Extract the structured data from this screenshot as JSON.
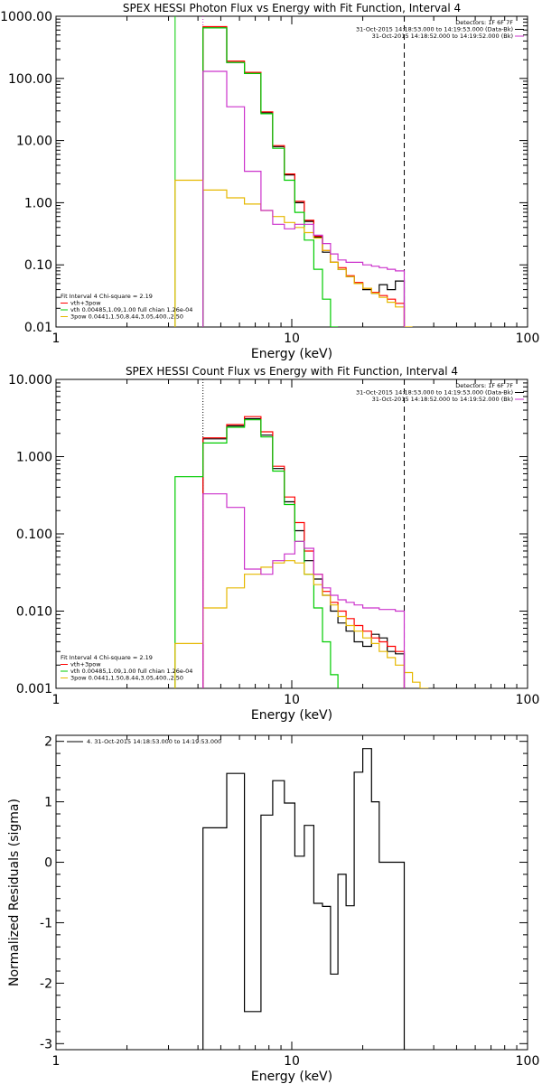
{
  "chart_data": [
    {
      "type": "line",
      "title": "SPEX HESSI Photon Flux vs Energy with Fit Function, Interval 4",
      "xlabel": "Energy (keV)",
      "ylabel": "",
      "xscale": "log",
      "yscale": "log",
      "xlim": [
        1,
        100
      ],
      "ylim": [
        0.01,
        1000
      ],
      "grid": false,
      "xticks": [
        "1",
        "10",
        "100"
      ],
      "yticks": [
        "0.01",
        "0.10",
        "1.00",
        "10.00",
        "100.00",
        "1000.00"
      ],
      "ytick_values": [
        0.01,
        0.1,
        1,
        10,
        100,
        1000
      ],
      "legend_top": [
        "Detectors: 1F 6F 7F",
        "31-Oct-2015 14:18:53.000 to 14:19:53.000 (Data-Bk)",
        "31-Oct-2015 14:18:52.000 to 14:19:52.000 (Bk)"
      ],
      "legend_top_colors": [
        "#000000",
        "#000000",
        "#cc33cc"
      ],
      "legend_bottom": [
        "Fit Interval 4   Chi-square = 2.19",
        "vth+3pow",
        "vth 0.00485,1.09,1.00  full chian 1.26e-04",
        "3pow 0.0441,1.50,8.44,3.05,400.,2.50"
      ],
      "legend_bottom_colors": [
        "",
        "#ff0000",
        "#00cc00",
        "#e6b800"
      ],
      "vlines": [
        {
          "x": 3.2,
          "color": "#00cc00",
          "style": "solid"
        },
        {
          "x": 4.2,
          "color": "#cc33cc",
          "style": "dotted"
        },
        {
          "x": 30,
          "color": "#000000",
          "style": "dashed"
        }
      ],
      "bin_edges": [
        3.2,
        4.2,
        5.3,
        6.3,
        7.4,
        8.3,
        9.3,
        10.3,
        11.3,
        12.4,
        13.5,
        14.6,
        15.7,
        17,
        18.4,
        20,
        21.8,
        23.5,
        25.4,
        27.5,
        30,
        32.5
      ],
      "series": [
        {
          "name": "",
          "color": "#000000",
          "values": [
            null,
            650,
            180,
            120,
            28,
            8,
            2.8,
            1.0,
            0.5,
            0.28,
            0.16,
            0.11,
            0.085,
            0.065,
            0.05,
            0.04,
            0.035,
            0.048,
            0.04,
            0.055,
            null
          ]
        },
        {
          "name": "vth+3pow",
          "color": "#ff0000",
          "values": [
            null,
            680,
            190,
            125,
            29,
            8.3,
            2.9,
            1.05,
            0.52,
            0.29,
            0.17,
            0.11,
            0.09,
            0.067,
            0.052,
            0.042,
            0.036,
            0.032,
            0.028,
            0.024,
            null
          ]
        },
        {
          "name": "vth",
          "color": "#00cc00",
          "values": [
            null,
            650,
            180,
            120,
            27,
            7.5,
            2.3,
            0.7,
            0.25,
            0.085,
            0.028,
            0.01,
            null,
            null,
            null,
            null,
            null,
            null,
            null,
            null,
            null
          ]
        },
        {
          "name": "3pow",
          "color": "#e6b800",
          "values": [
            2.3,
            1.6,
            1.2,
            0.95,
            0.75,
            0.6,
            0.48,
            0.4,
            0.33,
            0.27,
            0.17,
            0.11,
            0.085,
            0.065,
            0.05,
            0.042,
            0.035,
            0.03,
            0.025,
            0.021,
            0.01
          ]
        },
        {
          "name": "Bk",
          "color": "#cc33cc",
          "values": [
            null,
            130,
            35,
            3.2,
            0.75,
            0.45,
            0.38,
            0.45,
            0.45,
            0.3,
            0.22,
            0.15,
            0.12,
            0.11,
            0.11,
            0.1,
            0.095,
            0.09,
            0.085,
            0.08,
            null
          ]
        }
      ]
    },
    {
      "type": "line",
      "title": "SPEX HESSI Count Flux vs Energy with Fit Function, Interval 4",
      "xlabel": "Energy (keV)",
      "ylabel": "",
      "xscale": "log",
      "yscale": "log",
      "xlim": [
        1,
        100
      ],
      "ylim": [
        0.001,
        10
      ],
      "grid": false,
      "xticks": [
        "1",
        "10",
        "100"
      ],
      "yticks": [
        "0.001",
        "0.010",
        "0.100",
        "1.000",
        "10.000"
      ],
      "ytick_values": [
        0.001,
        0.01,
        0.1,
        1,
        10
      ],
      "legend_top": [
        "Detectors: 1F 6F 7F",
        "31-Oct-2015 14:18:53.000 to 14:19:53.000 (Data-Bk)",
        "31-Oct-2015 14:18:52.000 to 14:19:52.000 (Bk)"
      ],
      "legend_top_colors": [
        "#000000",
        "#000000",
        "#cc33cc"
      ],
      "legend_bottom": [
        "Fit Interval 4   Chi-square = 2.19",
        "vth+3pow",
        "vth 0.00485,1.09,1.00  full chian 1.26e-04",
        "3pow 0.0441,1.50,8.44,3.05,400.,2.50"
      ],
      "legend_bottom_colors": [
        "",
        "#ff0000",
        "#00cc00",
        "#e6b800"
      ],
      "vlines": [
        {
          "x": 4.2,
          "color": "#000000",
          "style": "dotted"
        },
        {
          "x": 30,
          "color": "#000000",
          "style": "dashed"
        }
      ],
      "bin_edges": [
        3.2,
        4.2,
        5.3,
        6.3,
        7.4,
        8.3,
        9.3,
        10.3,
        11.3,
        12.4,
        13.5,
        14.6,
        15.7,
        17,
        18.4,
        20,
        21.8,
        23.5,
        25.4,
        27.5,
        30,
        32.5,
        35,
        38
      ],
      "series": [
        {
          "name": "",
          "color": "#000000",
          "values": [
            null,
            1.7,
            2.5,
            3.1,
            1.9,
            0.7,
            0.26,
            0.11,
            0.045,
            0.026,
            0.016,
            0.01,
            0.007,
            0.0055,
            0.004,
            0.0035,
            0.005,
            0.0045,
            0.003,
            0.0028,
            null,
            null,
            null
          ]
        },
        {
          "name": "vth+3pow",
          "color": "#ff0000",
          "values": [
            null,
            1.75,
            2.6,
            3.3,
            2.1,
            0.75,
            0.3,
            0.14,
            0.06,
            0.03,
            0.018,
            0.013,
            0.01,
            0.008,
            0.0065,
            0.0055,
            0.0045,
            0.004,
            0.0035,
            0.003,
            null,
            null,
            null
          ]
        },
        {
          "name": "vth",
          "color": "#00cc00",
          "values": [
            0.55,
            1.5,
            2.4,
            3.0,
            1.8,
            0.65,
            0.24,
            0.08,
            0.03,
            0.011,
            0.004,
            0.0015,
            null,
            null,
            null,
            null,
            null,
            null,
            null,
            null,
            null,
            null,
            null
          ]
        },
        {
          "name": "3pow",
          "color": "#e6b800",
          "values": [
            0.0038,
            0.011,
            0.02,
            0.03,
            0.037,
            0.042,
            0.045,
            0.042,
            0.03,
            0.022,
            0.016,
            0.012,
            0.0085,
            0.0065,
            0.0055,
            0.0045,
            0.0038,
            0.003,
            0.0025,
            0.002,
            0.0016,
            0.0012,
            0.001
          ]
        },
        {
          "name": "Bk",
          "color": "#cc33cc",
          "values": [
            null,
            0.33,
            0.22,
            0.035,
            0.03,
            0.045,
            0.055,
            0.08,
            0.065,
            0.03,
            0.02,
            0.016,
            0.014,
            0.013,
            0.012,
            0.011,
            0.011,
            0.0105,
            0.0105,
            0.01,
            null,
            null,
            null
          ]
        }
      ]
    },
    {
      "type": "line",
      "title": "",
      "xlabel": "Energy (keV)",
      "ylabel": "Normalized Residuals (sigma)",
      "xscale": "log",
      "yscale": "linear",
      "xlim": [
        1,
        100
      ],
      "ylim": [
        -3.1,
        2.1
      ],
      "grid": false,
      "xticks": [
        "1",
        "10",
        "100"
      ],
      "yticks": [
        "-3",
        "-2",
        "-1",
        "0",
        "1",
        "2"
      ],
      "ytick_values": [
        -3,
        -2,
        -1,
        0,
        1,
        2
      ],
      "legend_top": [
        "4. 31-Oct-2015 14:18:53.000 to 14:19:53.000"
      ],
      "legend_top_colors": [
        "#000000"
      ],
      "legend_bottom": [],
      "legend_bottom_colors": [],
      "vlines": [],
      "bin_edges": [
        4.2,
        5.3,
        6.3,
        7.4,
        8.3,
        9.3,
        10.3,
        11.3,
        12.4,
        13.5,
        14.6,
        15.7,
        17,
        18.4,
        20,
        21.8,
        23.5,
        25.4,
        27.5,
        30
      ],
      "series": [
        {
          "name": "",
          "color": "#000000",
          "values": [
            0.57,
            1.47,
            -2.47,
            0.78,
            1.35,
            0.98,
            0.1,
            0.61,
            -0.68,
            -0.73,
            -1.85,
            -0.2,
            -0.72,
            1.49,
            1.88,
            1.0,
            0.0,
            0.0,
            0.0
          ],
          "first_drop_to": -3.1,
          "last_drop_to": -3.1
        }
      ]
    }
  ]
}
